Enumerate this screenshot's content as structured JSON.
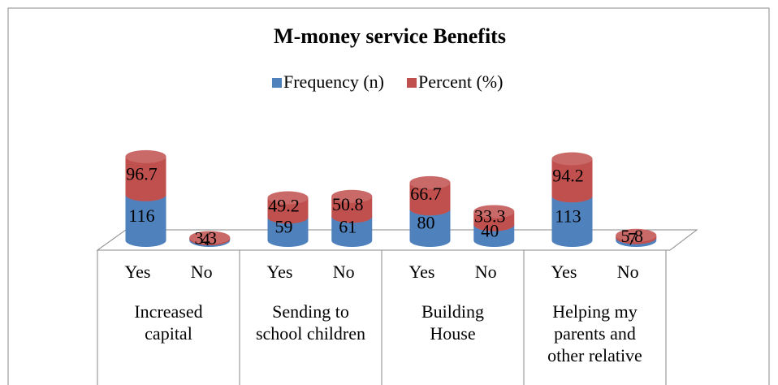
{
  "chart_data": {
    "type": "bar",
    "stacked": true,
    "title": "M-money service Benefits",
    "categories": [
      "Yes",
      "No",
      "Yes",
      "No",
      "Yes",
      "No",
      "Yes",
      "No"
    ],
    "groups": [
      "Increased\ncapital",
      "Sending to\nschool children",
      "Building\nHouse",
      "Helping my\nparents and\nother relative"
    ],
    "series": [
      {
        "name": "Frequency (n)",
        "color": "#4f81bd",
        "values": [
          116,
          4,
          59,
          61,
          80,
          40,
          113,
          7
        ]
      },
      {
        "name": "Percent (%)",
        "color": "#c0504d",
        "values": [
          96.7,
          3.3,
          49.2,
          50.8,
          66.7,
          33.3,
          94.2,
          5.8
        ]
      }
    ],
    "legend": "top"
  }
}
